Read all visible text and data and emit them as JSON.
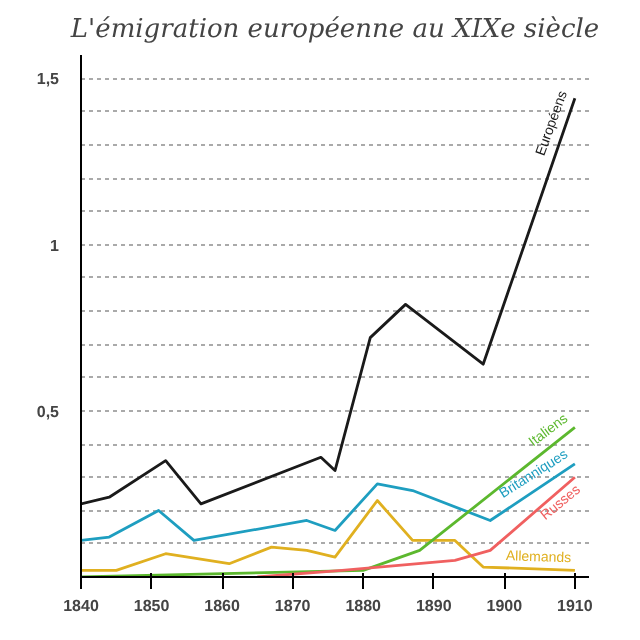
{
  "chart_data": {
    "type": "line",
    "title": "L'émigration européenne au XIXe siècle",
    "xlim": [
      1840,
      1912
    ],
    "xticks": [
      1840,
      1850,
      1860,
      1870,
      1880,
      1890,
      1900,
      1910
    ],
    "ylim": [
      0,
      1.57
    ],
    "yticks": [
      {
        "value": 0.1,
        "label": null
      },
      {
        "value": 0.2,
        "label": null
      },
      {
        "value": 0.3,
        "label": null
      },
      {
        "value": 0.4,
        "label": null
      },
      {
        "value": 0.5,
        "label": "0,5"
      },
      {
        "value": 0.6,
        "label": null
      },
      {
        "value": 0.7,
        "label": null
      },
      {
        "value": 0.8,
        "label": null
      },
      {
        "value": 0.9,
        "label": null
      },
      {
        "value": 1,
        "label": "1"
      },
      {
        "value": 1.1,
        "label": null
      },
      {
        "value": 1.2,
        "label": null
      },
      {
        "value": 1.3,
        "label": null
      },
      {
        "value": 1.4,
        "label": null
      },
      {
        "value": 1.5,
        "label": "1,5"
      }
    ],
    "grid": "y",
    "line_style": "solid",
    "series": [
      {
        "name": "Européens",
        "color": "#1a1a1a",
        "x": [
          1840,
          1844,
          1852,
          1857,
          1874,
          1876,
          1881,
          1886,
          1897,
          1910
        ],
        "values": [
          0.22,
          0.24,
          0.35,
          0.22,
          0.36,
          0.32,
          0.72,
          0.82,
          0.64,
          1.44
        ]
      },
      {
        "name": "Britanniques",
        "color": "#1e9ec0",
        "x": [
          1840,
          1844,
          1851,
          1856,
          1872,
          1876,
          1882,
          1887,
          1898,
          1910
        ],
        "values": [
          0.11,
          0.12,
          0.2,
          0.11,
          0.17,
          0.14,
          0.28,
          0.26,
          0.17,
          0.34
        ]
      },
      {
        "name": "Allemands",
        "color": "#e0b020",
        "x": [
          1840,
          1845,
          1852,
          1861,
          1867,
          1872,
          1876,
          1882,
          1887,
          1893,
          1897,
          1910
        ],
        "values": [
          0.02,
          0.02,
          0.07,
          0.04,
          0.09,
          0.08,
          0.06,
          0.23,
          0.11,
          0.11,
          0.03,
          0.02
        ]
      },
      {
        "name": "Italiens",
        "color": "#5cb82e",
        "x": [
          1840,
          1880,
          1888,
          1910
        ],
        "values": [
          0.0,
          0.02,
          0.08,
          0.45
        ]
      },
      {
        "name": "Russes",
        "color": "#f06060",
        "x": [
          1865,
          1877,
          1893,
          1898,
          1910
        ],
        "values": [
          0.0,
          0.02,
          0.05,
          0.08,
          0.3
        ]
      }
    ]
  }
}
